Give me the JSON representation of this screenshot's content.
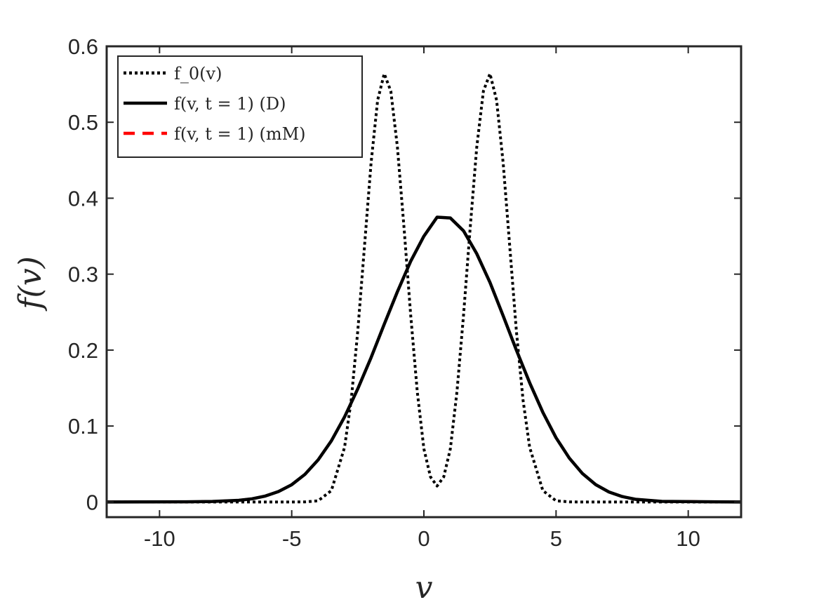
{
  "chart_data": {
    "type": "line",
    "xlabel": "v",
    "ylabel": "f(v)",
    "xlim": [
      -12,
      12
    ],
    "ylim": [
      -0.02,
      0.6
    ],
    "xticks": [
      -10,
      -5,
      0,
      5,
      10
    ],
    "xtick_labels": [
      "-10",
      "-5",
      "0",
      "5",
      "10"
    ],
    "yticks": [
      0,
      0.1,
      0.2,
      0.3,
      0.4,
      0.5,
      0.6
    ],
    "ytick_labels": [
      "0",
      "0.1",
      "0.2",
      "0.3",
      "0.4",
      "0.5",
      "0.6"
    ],
    "grid": false,
    "legend_position": "top-left",
    "series": [
      {
        "name": "f_0(v)",
        "color": "#000000",
        "style": "dotted",
        "x": [
          -12,
          -7,
          -5,
          -4.5,
          -4,
          -3.5,
          -3,
          -2.75,
          -2.5,
          -2.25,
          -2,
          -1.75,
          -1.5,
          -1.25,
          -1,
          -0.75,
          -0.5,
          -0.25,
          0,
          0.25,
          0.5,
          0.75,
          1,
          1.25,
          1.5,
          1.75,
          2,
          2.25,
          2.5,
          2.75,
          3,
          3.25,
          3.5,
          3.75,
          4,
          4.5,
          5,
          5.5,
          6,
          8,
          12
        ],
        "values": [
          0,
          0,
          0,
          0.0001,
          0.0015,
          0.015,
          0.072,
          0.134,
          0.225,
          0.336,
          0.446,
          0.529,
          0.564,
          0.541,
          0.467,
          0.36,
          0.246,
          0.145,
          0.07,
          0.033,
          0.021,
          0.033,
          0.07,
          0.145,
          0.246,
          0.36,
          0.467,
          0.541,
          0.564,
          0.529,
          0.446,
          0.336,
          0.225,
          0.134,
          0.072,
          0.015,
          0.0015,
          0.0001,
          0,
          0,
          0
        ]
      },
      {
        "name": "f(v, t = 1) (D)",
        "color": "#000000",
        "style": "solid",
        "x": [
          -12,
          -9,
          -8,
          -7,
          -6.5,
          -6,
          -5.5,
          -5,
          -4.5,
          -4,
          -3.5,
          -3,
          -2.5,
          -2,
          -1.5,
          -1,
          -0.5,
          0,
          0.5,
          1,
          1.5,
          2,
          2.5,
          3,
          3.5,
          4,
          4.5,
          5,
          5.5,
          6,
          6.5,
          7,
          7.5,
          8,
          9,
          12
        ],
        "values": [
          0,
          0.0002,
          0.0007,
          0.0022,
          0.0042,
          0.0078,
          0.0137,
          0.0228,
          0.0364,
          0.0554,
          0.0805,
          0.112,
          0.149,
          0.19,
          0.234,
          0.277,
          0.317,
          0.35,
          0.375,
          0.374,
          0.357,
          0.327,
          0.289,
          0.245,
          0.2,
          0.157,
          0.118,
          0.0846,
          0.0578,
          0.0374,
          0.0229,
          0.0132,
          0.0072,
          0.0036,
          0.0008,
          0
        ]
      },
      {
        "name": "f(v, t = 1) (mM)",
        "color": "#ff0000",
        "style": "dashed",
        "x": [
          -12,
          -9,
          -8,
          -7,
          -6.5,
          -6,
          -5.5,
          -5,
          -4.5,
          -4,
          -3.5,
          -3,
          -2.5,
          -2,
          -1.5,
          -1,
          -0.5,
          0,
          0.5,
          1,
          1.5,
          2,
          2.5,
          3,
          3.5,
          4,
          4.5,
          5,
          5.5,
          6,
          6.5,
          7,
          7.5,
          8,
          9,
          12
        ],
        "values": [
          0,
          0.0002,
          0.0007,
          0.0022,
          0.0042,
          0.0078,
          0.0137,
          0.0228,
          0.0364,
          0.0554,
          0.0805,
          0.112,
          0.149,
          0.19,
          0.234,
          0.277,
          0.317,
          0.35,
          0.375,
          0.374,
          0.357,
          0.327,
          0.289,
          0.245,
          0.2,
          0.157,
          0.118,
          0.0846,
          0.0578,
          0.0374,
          0.0229,
          0.0132,
          0.0072,
          0.0036,
          0.0008,
          0
        ]
      }
    ]
  }
}
